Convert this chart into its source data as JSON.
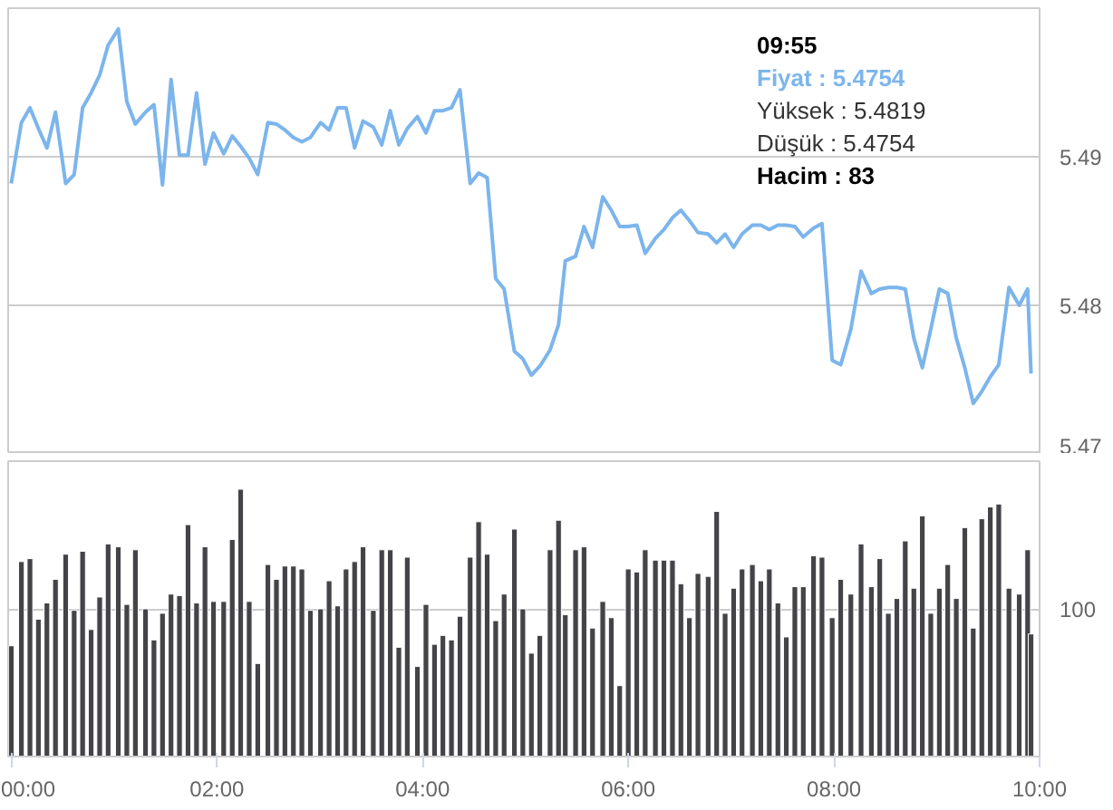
{
  "chart_data": [
    {
      "type": "line",
      "tick_labels": "y",
      "grid": "y",
      "line_style": "solid",
      "xlim": [
        -0.03,
        10.0
      ],
      "ylim": [
        5.47,
        5.5
      ],
      "yticks": [
        5.47,
        5.48,
        5.49
      ],
      "annotations": [
        "09:55",
        "Fiyat : 5.4754",
        "Yüksek : 5.4819",
        "Düşük : 5.4754",
        "Hacim : 83"
      ],
      "x": [
        0,
        0.099,
        0.182,
        0.264,
        0.347,
        0.43,
        0.529,
        0.612,
        0.694,
        0.777,
        0.86,
        0.942,
        1.041,
        1.124,
        1.207,
        1.306,
        1.388,
        1.471,
        1.554,
        1.636,
        1.719,
        1.802,
        1.884,
        1.967,
        2.066,
        2.149,
        2.231,
        2.314,
        2.397,
        2.496,
        2.579,
        2.661,
        2.744,
        2.826,
        2.909,
        3.008,
        3.091,
        3.174,
        3.256,
        3.339,
        3.421,
        3.521,
        3.603,
        3.686,
        3.769,
        3.851,
        3.95,
        4.033,
        4.116,
        4.198,
        4.281,
        4.364,
        4.463,
        4.545,
        4.628,
        4.711,
        4.793,
        4.893,
        4.975,
        5.058,
        5.14,
        5.24,
        5.322,
        5.388,
        5.488,
        5.57,
        5.653,
        5.752,
        5.835,
        5.917,
        6.0,
        6.083,
        6.165,
        6.264,
        6.347,
        6.43,
        6.512,
        6.595,
        6.678,
        6.777,
        6.86,
        6.942,
        7.025,
        7.107,
        7.207,
        7.289,
        7.372,
        7.455,
        7.537,
        7.62,
        7.702,
        7.802,
        7.884,
        7.983,
        8.066,
        8.165,
        8.264,
        8.364,
        8.446,
        8.529,
        8.612,
        8.694,
        8.777,
        8.86,
        8.942,
        9.025,
        9.107,
        9.19,
        9.273,
        9.355,
        9.438,
        9.521,
        9.603,
        9.702,
        9.802,
        9.884,
        9.917
      ],
      "series": [
        {
          "color": "#7cb5ec",
          "values": [
            5.4882,
            5.4923,
            5.4933,
            5.4919,
            5.4906,
            5.493,
            5.4882,
            5.4888,
            5.4933,
            5.4943,
            5.4955,
            5.4975,
            5.4986,
            5.4937,
            5.4922,
            5.493,
            5.4935,
            5.4881,
            5.4952,
            5.4901,
            5.4901,
            5.4943,
            5.4895,
            5.4916,
            5.4902,
            5.4914,
            5.4907,
            5.4899,
            5.4888,
            5.4923,
            5.4922,
            5.4918,
            5.4913,
            5.491,
            5.4913,
            5.4923,
            5.4918,
            5.4933,
            5.4933,
            5.4906,
            5.4924,
            5.492,
            5.4908,
            5.4931,
            5.4908,
            5.4919,
            5.4927,
            5.4916,
            5.4931,
            5.4931,
            5.4933,
            5.4945,
            5.4882,
            5.4889,
            5.4886,
            5.4818,
            5.4811,
            5.4769,
            5.4764,
            5.4753,
            5.4759,
            5.477,
            5.4787,
            5.483,
            5.4833,
            5.4853,
            5.4839,
            5.4873,
            5.4864,
            5.4853,
            5.4853,
            5.4854,
            5.4835,
            5.4845,
            5.4851,
            5.4859,
            5.4864,
            5.4857,
            5.4849,
            5.4848,
            5.4842,
            5.4848,
            5.4839,
            5.4848,
            5.4854,
            5.4854,
            5.4851,
            5.4854,
            5.4854,
            5.4853,
            5.4846,
            5.4852,
            5.4855,
            5.4763,
            5.476,
            5.4784,
            5.4823,
            5.4808,
            5.4811,
            5.4812,
            5.4812,
            5.4811,
            5.4778,
            5.4758,
            5.4784,
            5.4811,
            5.4808,
            5.4778,
            5.4758,
            5.4734,
            5.4742,
            5.4752,
            5.476,
            5.4812,
            5.48,
            5.4811,
            5.4754
          ]
        }
      ]
    },
    {
      "type": "bar",
      "grid": "y",
      "xlim": [
        -0.03,
        10.0
      ],
      "ylim": [
        0,
        200
      ],
      "xticks": [
        {
          "value": 0,
          "label": "00:00"
        },
        {
          "value": 2,
          "label": "02:00"
        },
        {
          "value": 4,
          "label": "04:00"
        },
        {
          "value": 6,
          "label": "06:00"
        },
        {
          "value": 8,
          "label": "08:00"
        },
        {
          "value": 10,
          "label": "10:00"
        }
      ],
      "yticks": [
        100
      ],
      "x": [
        0,
        0.099,
        0.182,
        0.264,
        0.347,
        0.43,
        0.529,
        0.612,
        0.694,
        0.777,
        0.86,
        0.942,
        1.041,
        1.124,
        1.207,
        1.306,
        1.388,
        1.471,
        1.554,
        1.636,
        1.719,
        1.802,
        1.884,
        1.967,
        2.066,
        2.149,
        2.231,
        2.314,
        2.397,
        2.496,
        2.579,
        2.661,
        2.744,
        2.826,
        2.909,
        3.008,
        3.091,
        3.174,
        3.256,
        3.339,
        3.421,
        3.521,
        3.603,
        3.686,
        3.769,
        3.851,
        3.95,
        4.033,
        4.116,
        4.198,
        4.281,
        4.364,
        4.463,
        4.545,
        4.628,
        4.711,
        4.793,
        4.893,
        4.975,
        5.058,
        5.14,
        5.24,
        5.322,
        5.388,
        5.488,
        5.57,
        5.653,
        5.752,
        5.835,
        5.917,
        6.0,
        6.083,
        6.165,
        6.264,
        6.347,
        6.43,
        6.512,
        6.595,
        6.678,
        6.777,
        6.86,
        6.942,
        7.025,
        7.107,
        7.207,
        7.289,
        7.372,
        7.455,
        7.537,
        7.62,
        7.702,
        7.802,
        7.884,
        7.983,
        8.066,
        8.165,
        8.264,
        8.364,
        8.446,
        8.529,
        8.612,
        8.694,
        8.777,
        8.86,
        8.942,
        9.025,
        9.107,
        9.19,
        9.273,
        9.355,
        9.438,
        9.521,
        9.603,
        9.702,
        9.802,
        9.884,
        9.917
      ],
      "series": [
        {
          "color": "#434348",
          "values": [
            75,
            132,
            134,
            93,
            104,
            120,
            137,
            99,
            139,
            86,
            108,
            144,
            142,
            103,
            140,
            100,
            79,
            97,
            110,
            109,
            157,
            104,
            142,
            105,
            105,
            147,
            181,
            105,
            63,
            130,
            120,
            129,
            129,
            127,
            99,
            100,
            119,
            102,
            127,
            132,
            142,
            99,
            140,
            140,
            74,
            135,
            61,
            103,
            76,
            82,
            79,
            95,
            135,
            159,
            137,
            92,
            110,
            154,
            100,
            70,
            82,
            140,
            160,
            96,
            140,
            142,
            87,
            105,
            94,
            48,
            127,
            125,
            140,
            133,
            133,
            133,
            117,
            94,
            124,
            122,
            166,
            97,
            114,
            127,
            130,
            119,
            127,
            104,
            81,
            115,
            115,
            136,
            135,
            94,
            120,
            110,
            144,
            115,
            134,
            97,
            107,
            146,
            114,
            163,
            97,
            114,
            130,
            107,
            155,
            87,
            161,
            169,
            171,
            114,
            110,
            140,
            83
          ]
        }
      ]
    }
  ]
}
